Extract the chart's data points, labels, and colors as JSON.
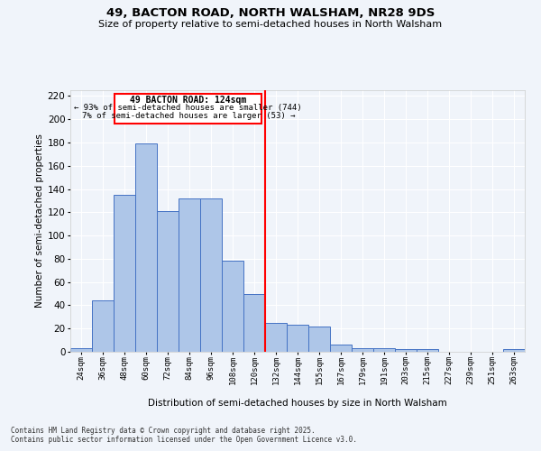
{
  "title1": "49, BACTON ROAD, NORTH WALSHAM, NR28 9DS",
  "title2": "Size of property relative to semi-detached houses in North Walsham",
  "xlabel": "Distribution of semi-detached houses by size in North Walsham",
  "ylabel": "Number of semi-detached properties",
  "categories": [
    "24sqm",
    "36sqm",
    "48sqm",
    "60sqm",
    "72sqm",
    "84sqm",
    "96sqm",
    "108sqm",
    "120sqm",
    "132sqm",
    "144sqm",
    "155sqm",
    "167sqm",
    "179sqm",
    "191sqm",
    "203sqm",
    "215sqm",
    "227sqm",
    "239sqm",
    "251sqm",
    "263sqm"
  ],
  "values": [
    3,
    44,
    135,
    179,
    121,
    132,
    132,
    78,
    50,
    25,
    23,
    22,
    6,
    3,
    3,
    2,
    2,
    0,
    0,
    0,
    2
  ],
  "bar_color": "#aec6e8",
  "bar_edge_color": "#4472c4",
  "vline_color": "red",
  "annotation_title": "49 BACTON ROAD: 124sqm",
  "annotation_line1": "← 93% of semi-detached houses are smaller (744)",
  "annotation_line2": "7% of semi-detached houses are larger (53) →",
  "ylim": [
    0,
    225
  ],
  "yticks": [
    0,
    20,
    40,
    60,
    80,
    100,
    120,
    140,
    160,
    180,
    200,
    220
  ],
  "footer1": "Contains HM Land Registry data © Crown copyright and database right 2025.",
  "footer2": "Contains public sector information licensed under the Open Government Licence v3.0.",
  "bg_color": "#f0f4fa",
  "grid_color": "white"
}
